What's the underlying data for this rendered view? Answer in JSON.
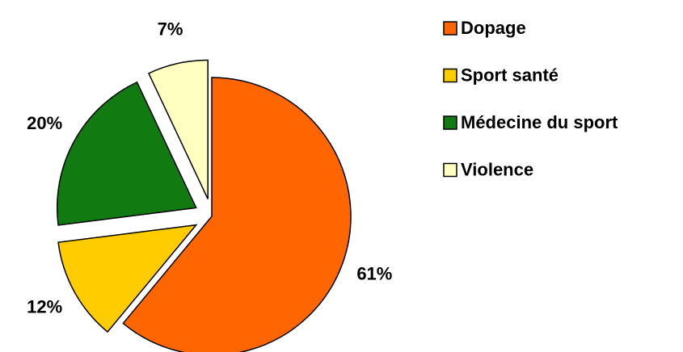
{
  "chart_data": {
    "type": "pie",
    "categories": [
      "Dopage",
      "Sport santé",
      "Médecine du sport",
      "Violence"
    ],
    "values": [
      61,
      12,
      20,
      7
    ],
    "value_labels": [
      "61%",
      "12%",
      "20%",
      "7%"
    ],
    "colors": [
      "#ff6600",
      "#ffcc00",
      "#117a11",
      "#ffffc0"
    ],
    "legend": "right"
  }
}
